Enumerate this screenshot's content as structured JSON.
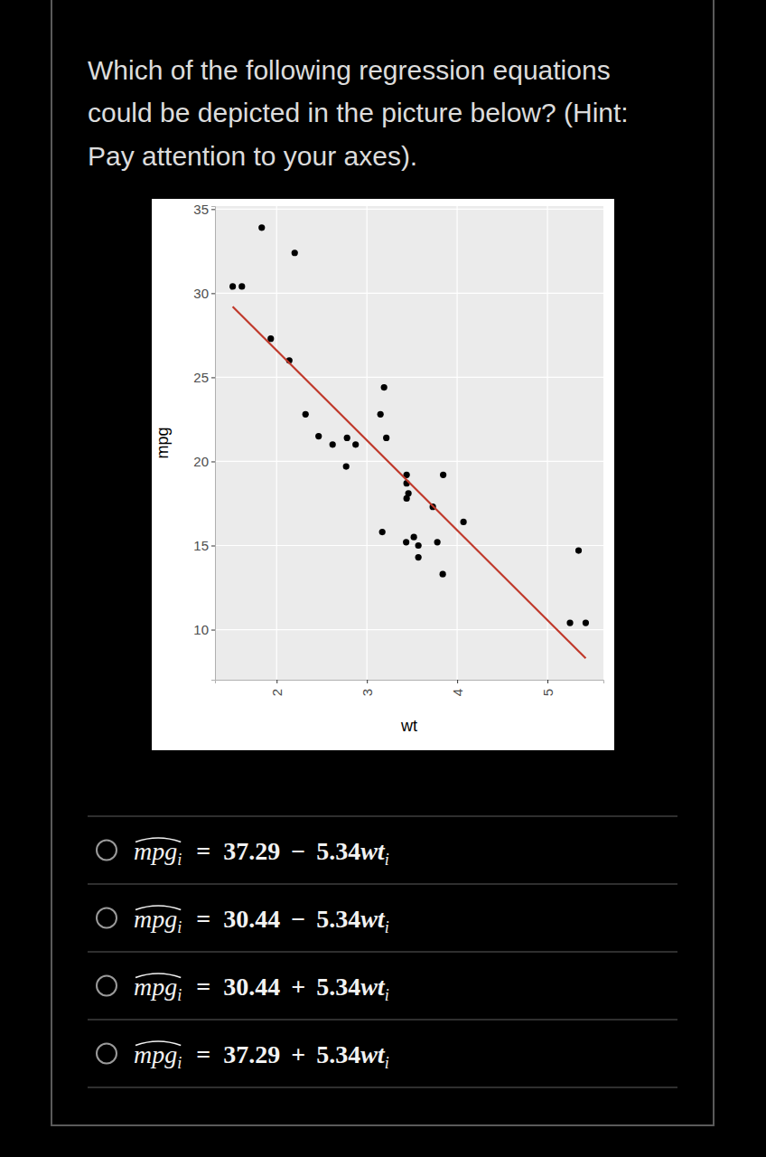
{
  "question": {
    "lines": [
      "Which of the following regression equations",
      "could be depicted in the picture below? (Hint:",
      "Pay attention to your axes)."
    ]
  },
  "options": [
    {
      "lhs": "mpg",
      "sub": "i",
      "rel": "=",
      "intercept": "37.29",
      "op": "−",
      "slope": "5.34",
      "var": "wt",
      "var_sub": "i"
    },
    {
      "lhs": "mpg",
      "sub": "i",
      "rel": "=",
      "intercept": "30.44",
      "op": "−",
      "slope": "5.34",
      "var": "wt",
      "var_sub": "i"
    },
    {
      "lhs": "mpg",
      "sub": "i",
      "rel": "=",
      "intercept": "30.44",
      "op": "+",
      "slope": "5.34",
      "var": "wt",
      "var_sub": "i"
    },
    {
      "lhs": "mpg",
      "sub": "i",
      "rel": "=",
      "intercept": "37.29",
      "op": "+",
      "slope": "5.34",
      "var": "wt",
      "var_sub": "i"
    }
  ],
  "chart_data": {
    "type": "scatter",
    "x_label": "wt",
    "y_label": "mpg",
    "xlim": [
      1.317,
      5.62
    ],
    "ylim": [
      7.02,
      35.18
    ],
    "xticks": [
      2,
      3,
      4,
      5
    ],
    "yticks": [
      10,
      15,
      20,
      25,
      30,
      35
    ],
    "grid": true,
    "series": [
      {
        "type": "scatter",
        "color": "#000000",
        "marker": "circle",
        "x": [
          2.62,
          2.875,
          2.32,
          3.215,
          3.44,
          3.46,
          3.57,
          3.19,
          3.15,
          3.44,
          3.44,
          4.07,
          3.73,
          3.78,
          5.25,
          5.424,
          5.345,
          2.2,
          1.615,
          1.835,
          2.465,
          3.52,
          3.435,
          3.84,
          3.845,
          1.935,
          2.14,
          1.513,
          3.17,
          2.77,
          3.57,
          2.78
        ],
        "values": [
          21.0,
          21.0,
          22.8,
          21.4,
          18.7,
          18.1,
          14.3,
          24.4,
          22.8,
          19.2,
          17.8,
          16.4,
          17.3,
          15.2,
          10.4,
          10.4,
          14.7,
          32.4,
          30.4,
          33.9,
          21.5,
          15.5,
          15.2,
          13.3,
          19.2,
          27.3,
          26.0,
          30.4,
          15.8,
          19.7,
          15.0,
          21.4
        ]
      },
      {
        "type": "line",
        "color": "#c0392b",
        "line_style": "solid",
        "x": [
          1.513,
          5.424
        ],
        "values": [
          29.2,
          8.3
        ]
      }
    ]
  }
}
